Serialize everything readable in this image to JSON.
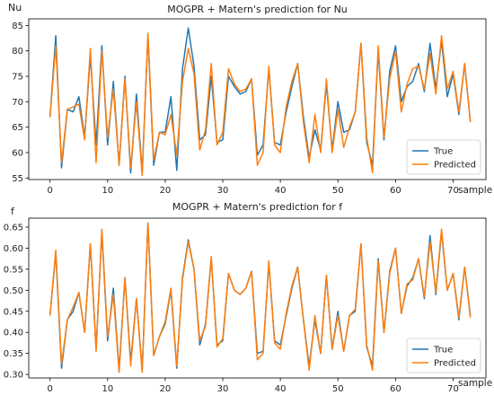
{
  "colors": {
    "true": "#1f77b4",
    "predicted": "#ff7f0e"
  },
  "chart_data": [
    {
      "type": "line",
      "title": "MOGPR + Matern's prediction for Nu",
      "xlabel": "sample",
      "ylabel": "Nu",
      "xlim": [
        -3.7,
        75.7
      ],
      "ylim": [
        54.7,
        86.3
      ],
      "xticks": [
        0,
        10,
        20,
        30,
        40,
        50,
        60,
        70
      ],
      "yticks": [
        55,
        60,
        65,
        70,
        75,
        80,
        85
      ],
      "legend": "lower-right",
      "x": [
        0,
        1,
        2,
        3,
        4,
        5,
        6,
        7,
        8,
        9,
        10,
        11,
        12,
        13,
        14,
        15,
        16,
        17,
        18,
        19,
        20,
        21,
        22,
        23,
        24,
        25,
        26,
        27,
        28,
        29,
        30,
        31,
        32,
        33,
        34,
        35,
        36,
        37,
        38,
        39,
        40,
        41,
        42,
        43,
        44,
        45,
        46,
        47,
        48,
        49,
        50,
        51,
        52,
        53,
        54,
        55,
        56,
        57,
        58,
        59,
        60,
        61,
        62,
        63,
        64,
        65,
        66,
        67,
        68,
        69,
        70,
        71,
        72,
        73
      ],
      "series": [
        {
          "name": "True",
          "color": "#1f77b4",
          "values": [
            67,
            83,
            57,
            68.5,
            68,
            71,
            63,
            79,
            61.5,
            81,
            61.5,
            74,
            57.5,
            75,
            56,
            71.5,
            56,
            83,
            57.5,
            64,
            64,
            71,
            56.5,
            76.5,
            84.5,
            77,
            62.5,
            63.5,
            75,
            62,
            62.5,
            75,
            73,
            71.5,
            72,
            74.5,
            59.5,
            61.5,
            76.5,
            62,
            61.5,
            68,
            73,
            77.5,
            67,
            59,
            64.5,
            60.5,
            73.5,
            60.5,
            70,
            64,
            64.5,
            68,
            81.5,
            62,
            57.5,
            80,
            62.5,
            76,
            81,
            70,
            73,
            74,
            77.5,
            72,
            81.5,
            72.5,
            82,
            71,
            75.5,
            67.5,
            77.5,
            66
          ]
        },
        {
          "name": "Predicted",
          "color": "#ff7f0e",
          "values": [
            67,
            81,
            58,
            68.5,
            69,
            69.5,
            62.5,
            80.5,
            58,
            80,
            63,
            72.5,
            57.5,
            74.5,
            57,
            70,
            55.5,
            83.5,
            58.5,
            64,
            63.5,
            67.5,
            59.5,
            74,
            80.5,
            75.5,
            60.5,
            64.5,
            77.5,
            61.5,
            64,
            76.5,
            73.5,
            72,
            72.5,
            74.5,
            57.5,
            60,
            77,
            61.5,
            60,
            69,
            74,
            77.5,
            66,
            58,
            67.5,
            60,
            74.5,
            60,
            68.5,
            61,
            65,
            68,
            81.5,
            63,
            56,
            81,
            63,
            74.5,
            80,
            68,
            73.5,
            76.5,
            77,
            72.5,
            79.5,
            71.5,
            83,
            72.5,
            76,
            68,
            77.5,
            66
          ]
        }
      ]
    },
    {
      "type": "line",
      "title": "MOGPR + Matern's prediction for f",
      "xlabel": "sample",
      "ylabel": "f",
      "xlim": [
        -3.7,
        75.7
      ],
      "ylim": [
        0.2917,
        0.6713
      ],
      "xticks": [
        0,
        10,
        20,
        30,
        40,
        50,
        60,
        70
      ],
      "yticks": [
        0.3,
        0.35,
        0.4,
        0.45,
        0.5,
        0.55,
        0.6,
        0.65
      ],
      "legend": "lower-right",
      "x": [
        0,
        1,
        2,
        3,
        4,
        5,
        6,
        7,
        8,
        9,
        10,
        11,
        12,
        13,
        14,
        15,
        16,
        17,
        18,
        19,
        20,
        21,
        22,
        23,
        24,
        25,
        26,
        27,
        28,
        29,
        30,
        31,
        32,
        33,
        34,
        35,
        36,
        37,
        38,
        39,
        40,
        41,
        42,
        43,
        44,
        45,
        46,
        47,
        48,
        49,
        50,
        51,
        52,
        53,
        54,
        55,
        56,
        57,
        58,
        59,
        60,
        61,
        62,
        63,
        64,
        65,
        66,
        67,
        68,
        69,
        70,
        71,
        72,
        73
      ],
      "series": [
        {
          "name": "True",
          "color": "#1f77b4",
          "values": [
            0.44,
            0.59,
            0.315,
            0.43,
            0.45,
            0.495,
            0.4,
            0.61,
            0.36,
            0.64,
            0.38,
            0.505,
            0.31,
            0.53,
            0.33,
            0.48,
            0.31,
            0.66,
            0.345,
            0.39,
            0.42,
            0.5,
            0.315,
            0.53,
            0.62,
            0.55,
            0.37,
            0.42,
            0.575,
            0.37,
            0.38,
            0.54,
            0.5,
            0.49,
            0.505,
            0.545,
            0.35,
            0.355,
            0.565,
            0.38,
            0.37,
            0.44,
            0.505,
            0.555,
            0.43,
            0.32,
            0.43,
            0.35,
            0.535,
            0.36,
            0.45,
            0.355,
            0.44,
            0.45,
            0.61,
            0.365,
            0.32,
            0.575,
            0.4,
            0.545,
            0.6,
            0.445,
            0.51,
            0.53,
            0.575,
            0.48,
            0.63,
            0.49,
            0.64,
            0.5,
            0.54,
            0.43,
            0.555,
            0.44
          ]
        },
        {
          "name": "Predicted",
          "color": "#ff7f0e",
          "values": [
            0.44,
            0.595,
            0.325,
            0.43,
            0.46,
            0.495,
            0.4,
            0.61,
            0.355,
            0.645,
            0.39,
            0.49,
            0.305,
            0.53,
            0.32,
            0.48,
            0.305,
            0.66,
            0.345,
            0.39,
            0.425,
            0.505,
            0.32,
            0.525,
            0.615,
            0.55,
            0.38,
            0.415,
            0.58,
            0.365,
            0.385,
            0.54,
            0.5,
            0.49,
            0.505,
            0.545,
            0.335,
            0.35,
            0.57,
            0.375,
            0.36,
            0.445,
            0.51,
            0.555,
            0.43,
            0.31,
            0.44,
            0.35,
            0.535,
            0.36,
            0.44,
            0.355,
            0.44,
            0.455,
            0.61,
            0.37,
            0.31,
            0.57,
            0.4,
            0.54,
            0.6,
            0.445,
            0.515,
            0.525,
            0.575,
            0.485,
            0.615,
            0.495,
            0.645,
            0.5,
            0.54,
            0.435,
            0.555,
            0.435
          ]
        }
      ]
    }
  ]
}
